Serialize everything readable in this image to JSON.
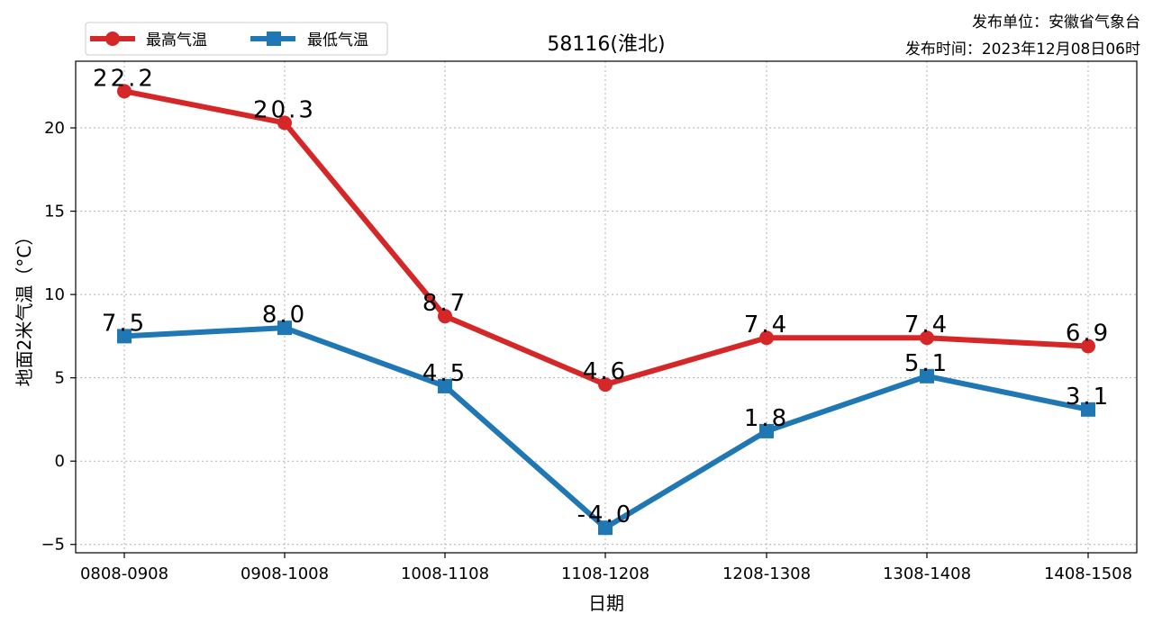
{
  "chart_data": {
    "type": "line",
    "title": "58116(淮北)",
    "xlabel": "日期",
    "ylabel": "地面2米气温（°C）",
    "categories": [
      "0808-0908",
      "0908-1008",
      "1008-1108",
      "1108-1208",
      "1208-1308",
      "1308-1408",
      "1408-1508"
    ],
    "ylim": [
      -5.5,
      24.0
    ],
    "yticks": [
      -5,
      0,
      5,
      10,
      15,
      20
    ],
    "grid": true,
    "legend_position": "top-left",
    "series": [
      {
        "name": "最高气温",
        "color": "#d62728",
        "marker": "circle",
        "values": [
          22.2,
          20.3,
          8.7,
          4.6,
          7.4,
          7.4,
          6.9
        ],
        "labels": [
          "22.2",
          "20.3",
          "8.7",
          "4.6",
          "7.4",
          "7.4",
          "6.9"
        ]
      },
      {
        "name": "最低气温",
        "color": "#1f77b4",
        "marker": "square",
        "values": [
          7.5,
          8.0,
          4.5,
          -4.0,
          1.8,
          5.1,
          3.1
        ],
        "labels": [
          "7.5",
          "8.0",
          "4.5",
          "-4.0",
          "1.8",
          "5.1",
          "3.1"
        ]
      }
    ]
  },
  "info": {
    "publisher_label": "发布单位：",
    "publisher": "安徽省气象台",
    "time_label": "发布时间：",
    "time": "2023年12月08日06时"
  }
}
